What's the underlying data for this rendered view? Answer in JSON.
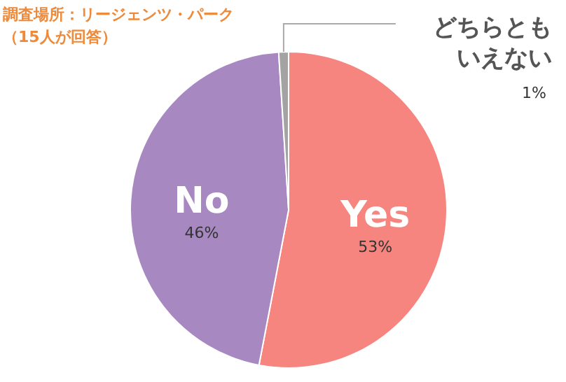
{
  "chart_data": {
    "type": "pie",
    "title": "調査場所：リージェンツ・パーク",
    "subtitle": "（15人が回答）",
    "categories": [
      "Yes",
      "No",
      "どちらともいえない"
    ],
    "values": [
      53,
      46,
      1
    ],
    "colors": [
      "#f6857f",
      "#a788c1",
      "#a3a3a3"
    ],
    "value_labels": [
      "53%",
      "46%",
      "1%"
    ]
  }
}
